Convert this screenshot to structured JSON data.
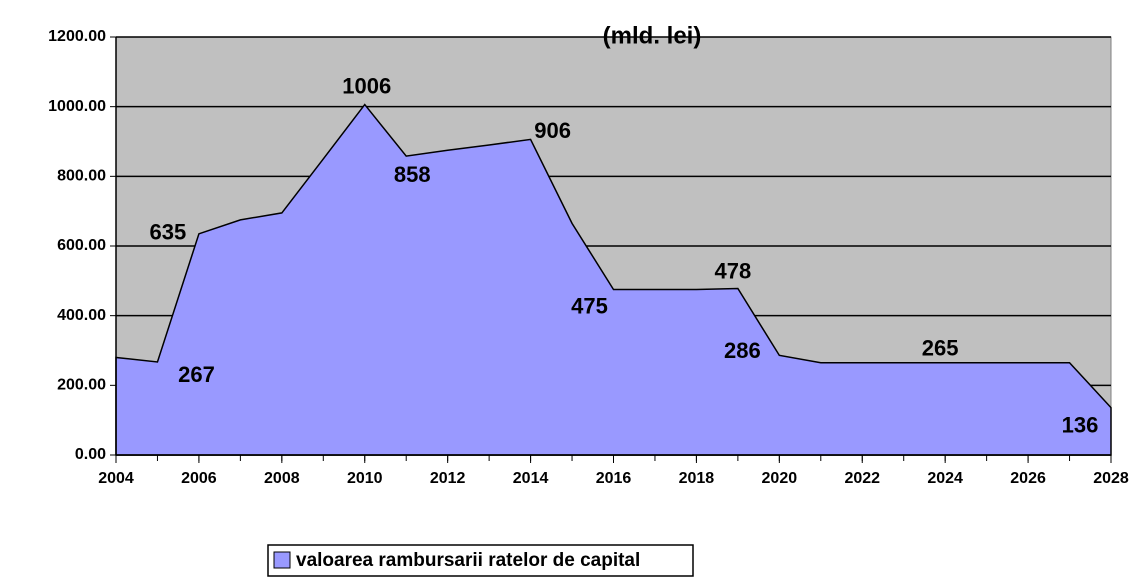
{
  "chart_data": {
    "type": "area",
    "title": "(mld. lei)",
    "x": [
      2004,
      2005,
      2006,
      2007,
      2008,
      2009,
      2010,
      2011,
      2012,
      2013,
      2014,
      2015,
      2016,
      2017,
      2018,
      2019,
      2020,
      2021,
      2022,
      2023,
      2024,
      2025,
      2026,
      2027,
      2028
    ],
    "series": [
      {
        "name": "valoarea rambursarii ratelor de capital",
        "color": "#9999ff",
        "values": [
          280,
          267,
          635,
          675,
          695,
          850,
          1006,
          858,
          875,
          890,
          906,
          665,
          475,
          475,
          475,
          478,
          286,
          265,
          265,
          265,
          265,
          265,
          265,
          265,
          136
        ],
        "value_labels": [
          null,
          "267",
          "635",
          null,
          null,
          null,
          "1006",
          "858",
          null,
          null,
          "906",
          null,
          "475",
          null,
          null,
          "478",
          "286",
          null,
          null,
          null,
          "265",
          null,
          null,
          null,
          "136"
        ]
      }
    ],
    "xlim": [
      2004,
      2028
    ],
    "xticks": [
      2004,
      2006,
      2008,
      2010,
      2012,
      2014,
      2016,
      2018,
      2020,
      2022,
      2024,
      2026,
      2028
    ],
    "ylim": [
      0,
      1200
    ],
    "yticks": [
      {
        "value": 0,
        "label": "0.00"
      },
      {
        "value": 200,
        "label": "200.00"
      },
      {
        "value": 400,
        "label": "400.00"
      },
      {
        "value": 600,
        "label": "600.00"
      },
      {
        "value": 800,
        "label": "800.00"
      },
      {
        "value": 1000,
        "label": "1000.00"
      },
      {
        "value": 1200,
        "label": "1200.00"
      }
    ],
    "grid": true,
    "plot_background": "#c0c0c0",
    "legend": "bottom"
  }
}
